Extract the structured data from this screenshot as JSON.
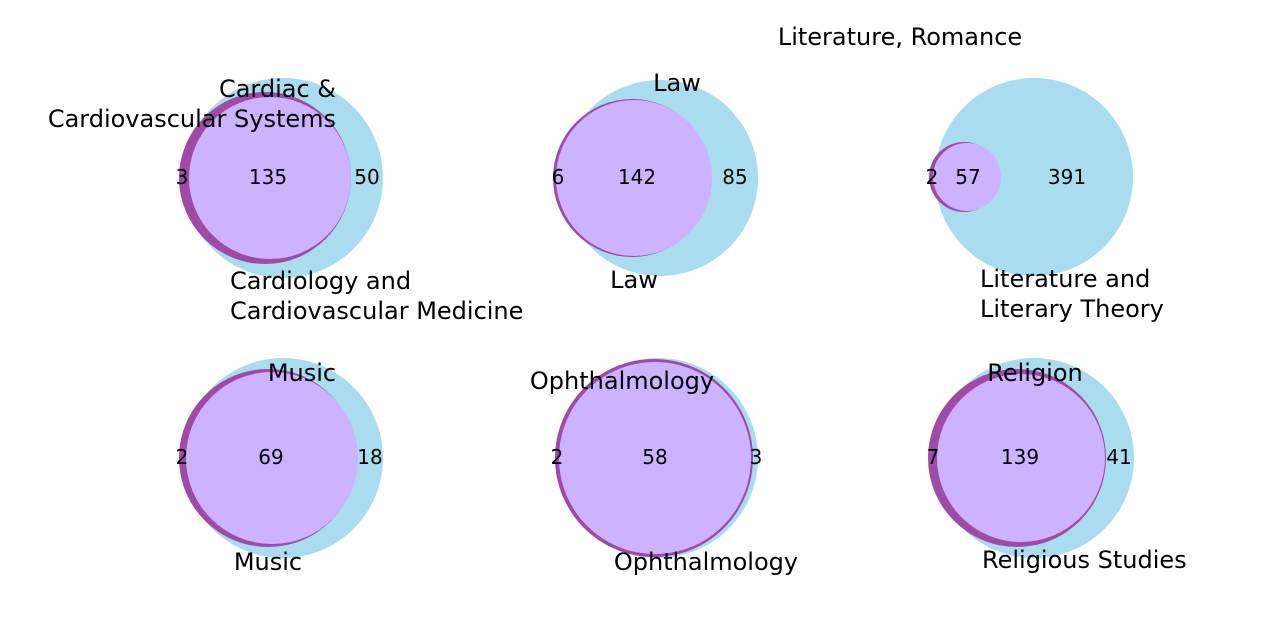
{
  "colors": {
    "left_only": "#a04aa8",
    "right_only": "#a9dcee",
    "overlap": "#ccb2ff"
  },
  "diagrams": [
    {
      "left_label": [
        "Cardiology and",
        "Cardiovascular Medicine"
      ],
      "right_label": [
        "Cardiac &",
        "Cardiovascular Systems"
      ],
      "left_only": "3",
      "overlap": "135",
      "right_only": "50"
    },
    {
      "left_label": [
        "Law"
      ],
      "right_label": [
        "Law"
      ],
      "left_only": "6",
      "overlap": "142",
      "right_only": "85"
    },
    {
      "left_label": [
        "Literature and",
        "Literary Theory"
      ],
      "right_label": [
        "Literature, Romance"
      ],
      "left_only": "2",
      "overlap": "57",
      "right_only": "391"
    },
    {
      "left_label": [
        "Music"
      ],
      "right_label": [
        "Music"
      ],
      "left_only": "2",
      "overlap": "69",
      "right_only": "18"
    },
    {
      "left_label": [
        "Ophthalmology"
      ],
      "right_label": [
        "Ophthalmology"
      ],
      "left_only": "2",
      "overlap": "58",
      "right_only": "3"
    },
    {
      "left_label": [
        "Religious Studies"
      ],
      "right_label": [
        "Religion"
      ],
      "left_only": "7",
      "overlap": "139",
      "right_only": "41"
    }
  ]
}
